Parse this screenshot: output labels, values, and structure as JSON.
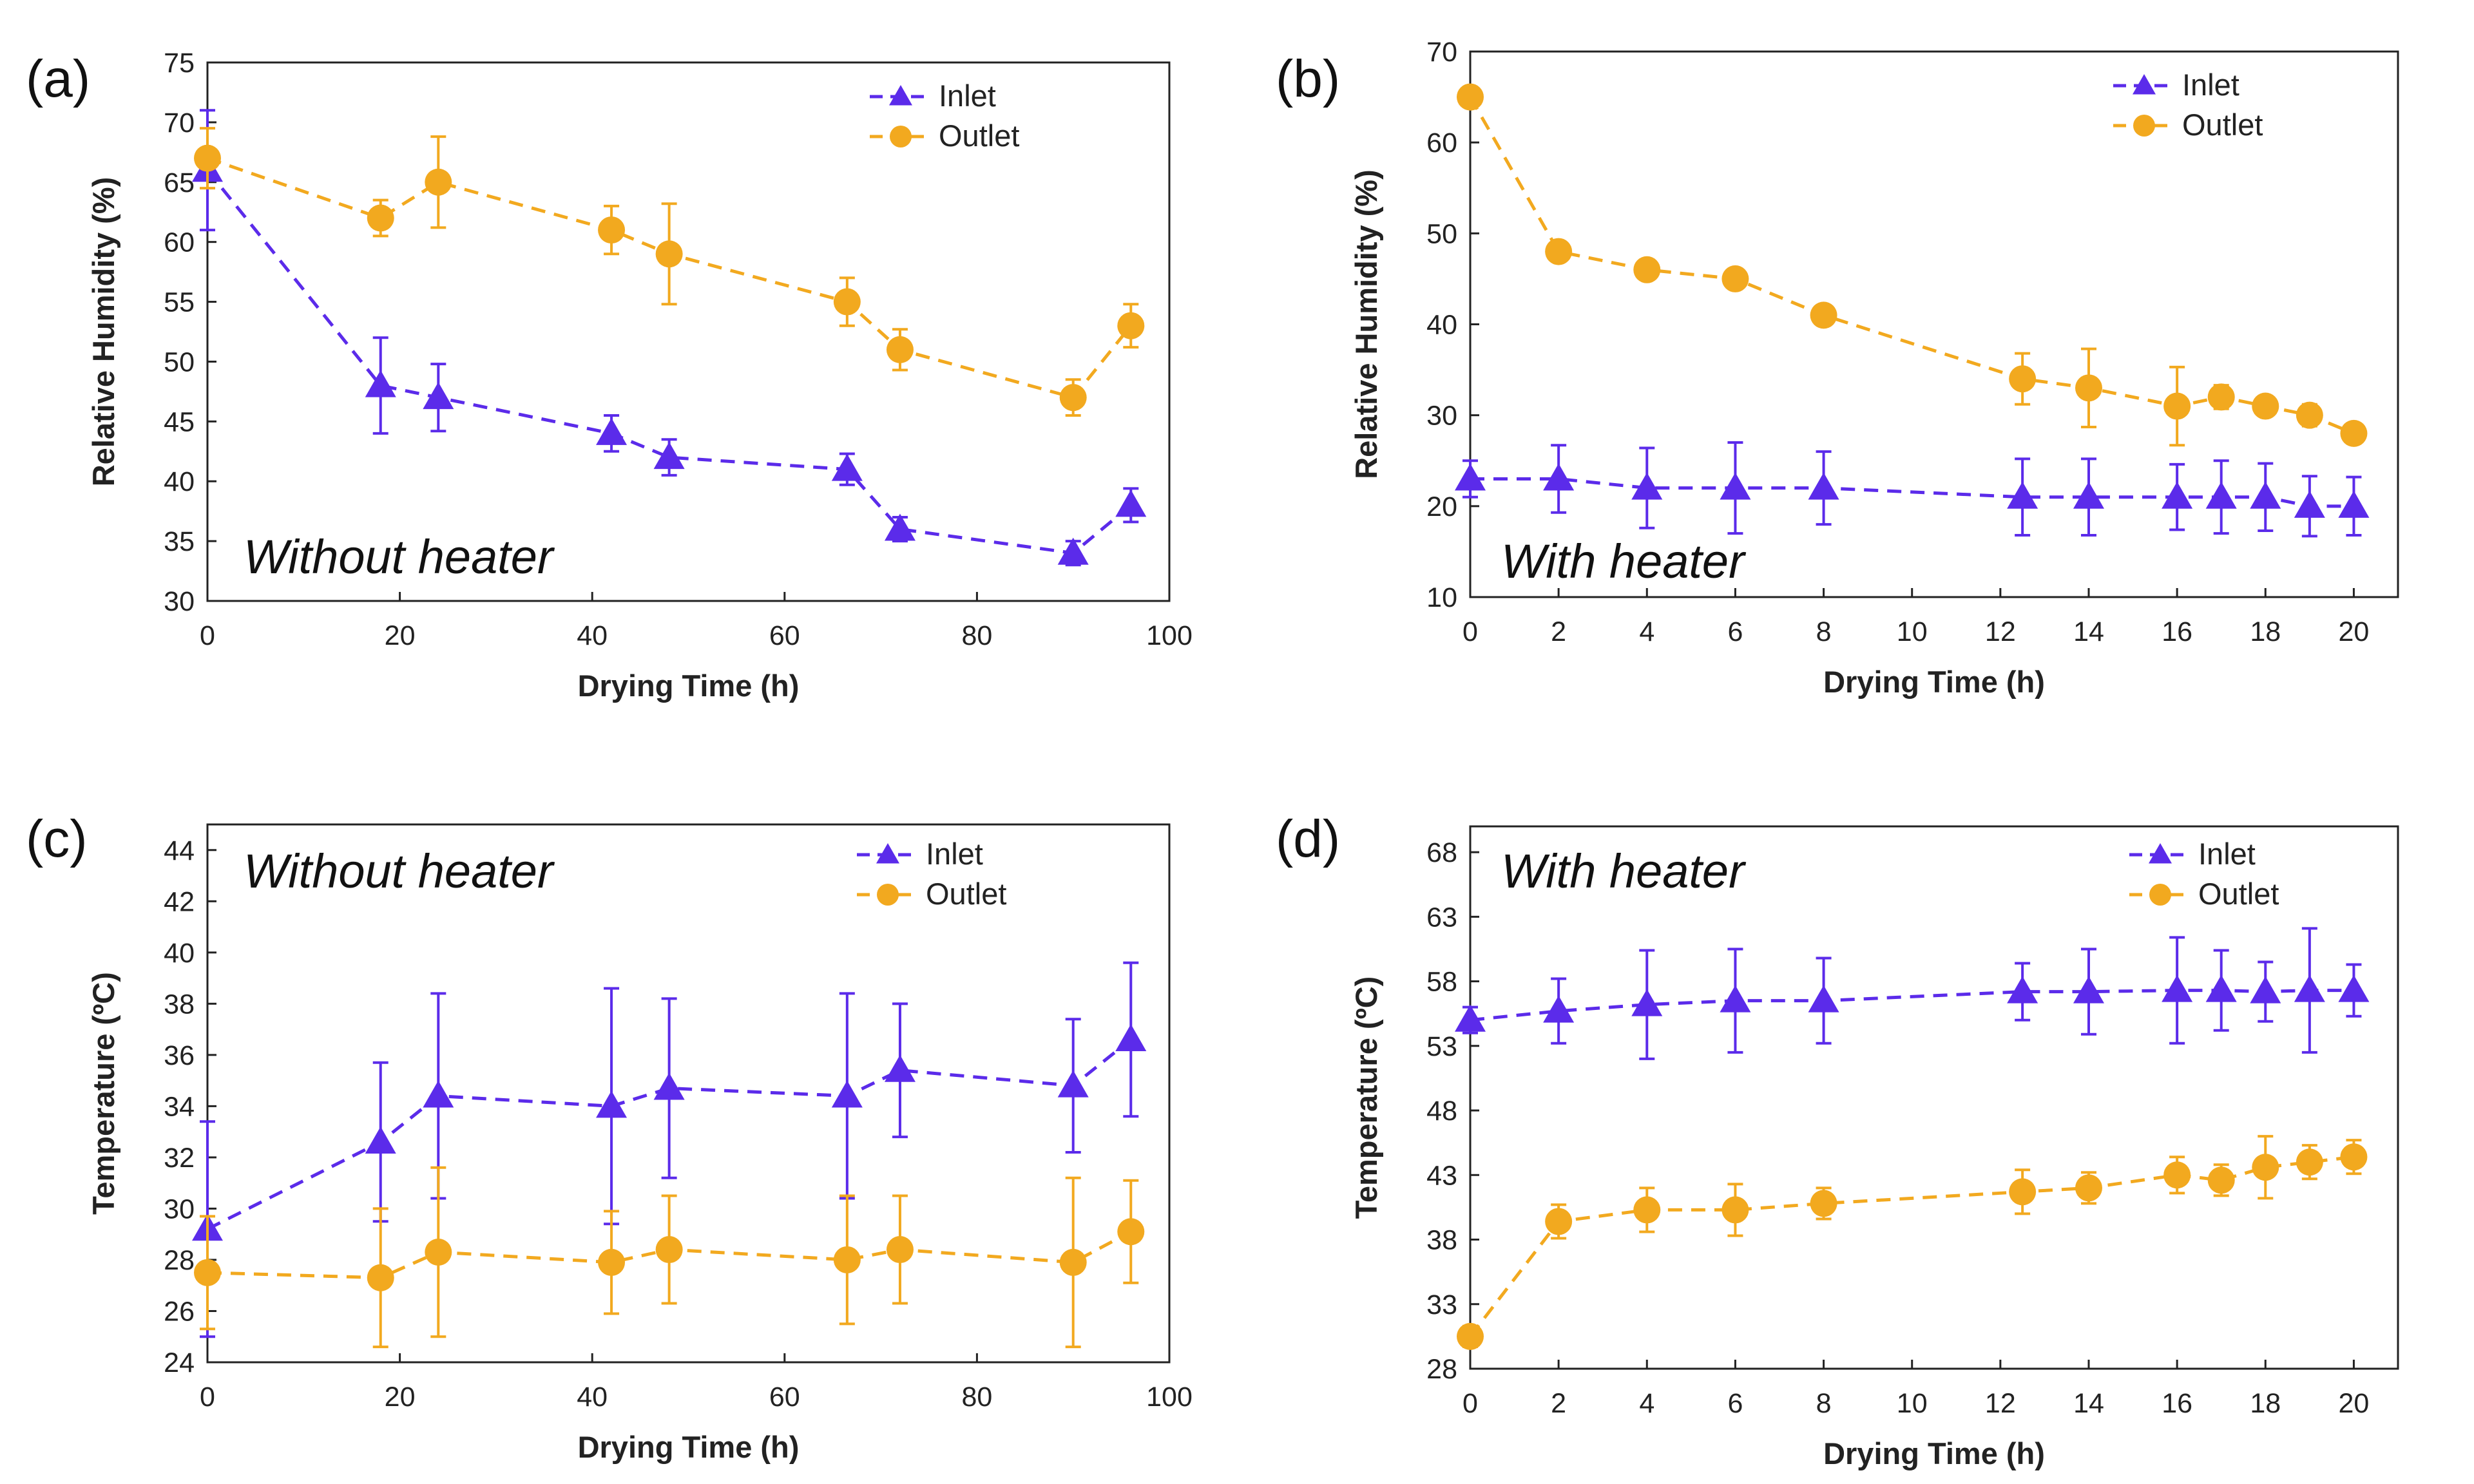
{
  "colors": {
    "inlet": "#5B2BEA",
    "outlet": "#F2A91F",
    "axis": "#222222"
  },
  "chart_data": [
    {
      "type": "line",
      "panel_label": "(a)",
      "annotation": "Without heater",
      "xlabel": "Drying  Time (h)",
      "ylabel": "Relative Humidity (%)",
      "xlim": [
        0,
        100
      ],
      "ylim": [
        30,
        75
      ],
      "xticks": [
        0,
        20,
        40,
        60,
        80,
        100
      ],
      "yticks": [
        30,
        35,
        40,
        45,
        50,
        55,
        60,
        65,
        70,
        75
      ],
      "legend": [
        "Inlet",
        "Outlet"
      ],
      "series": [
        {
          "name": "Inlet",
          "marker": "triangle",
          "x": [
            0,
            18,
            24,
            42,
            48,
            66.5,
            72,
            90,
            96
          ],
          "y": [
            66,
            48,
            47,
            44,
            42,
            41,
            36,
            34,
            38
          ],
          "err": [
            5,
            4,
            2.8,
            1.5,
            1.5,
            1.3,
            1,
            1,
            1.4
          ]
        },
        {
          "name": "Outlet",
          "marker": "circle",
          "x": [
            0,
            18,
            24,
            42,
            48,
            66.5,
            72,
            90,
            96
          ],
          "y": [
            67,
            62,
            65,
            61,
            59,
            55,
            51,
            47,
            53
          ],
          "err": [
            2.5,
            1.5,
            3.8,
            2,
            4.2,
            2,
            1.7,
            1.5,
            1.8
          ]
        }
      ]
    },
    {
      "type": "line",
      "panel_label": "(b)",
      "annotation": "With heater",
      "xlabel": "Drying  Time (h)",
      "ylabel": "Relative Humidity (%)",
      "xlim": [
        0,
        21
      ],
      "ylim": [
        10,
        70
      ],
      "xticks": [
        0,
        2,
        4,
        6,
        8,
        10,
        12,
        14,
        16,
        18,
        20
      ],
      "yticks": [
        10,
        20,
        30,
        40,
        50,
        60,
        70
      ],
      "legend": [
        "Inlet",
        "Outlet"
      ],
      "series": [
        {
          "name": "Inlet",
          "marker": "triangle",
          "x": [
            0,
            2,
            4,
            6,
            8,
            12.5,
            14,
            16,
            17,
            18,
            19,
            20
          ],
          "y": [
            23,
            23,
            22,
            22,
            22,
            21,
            21,
            21,
            21,
            21,
            20,
            20
          ],
          "err": [
            2,
            3.7,
            4.4,
            5,
            4,
            4.2,
            4.2,
            3.6,
            4,
            3.7,
            3.3,
            3.2
          ]
        },
        {
          "name": "Outlet",
          "marker": "circle",
          "x": [
            0,
            2,
            4,
            6,
            8,
            12.5,
            14,
            16,
            17,
            18,
            19,
            20
          ],
          "y": [
            65,
            48,
            46,
            45,
            41,
            34,
            33,
            31,
            32,
            31,
            30,
            28
          ],
          "err": [
            1,
            1,
            1,
            1,
            1,
            2.8,
            4.3,
            4.3,
            1.3,
            1,
            1.2,
            1
          ]
        }
      ]
    },
    {
      "type": "line",
      "panel_label": "(c)",
      "annotation": "Without heater",
      "xlabel": "Drying  Time (h)",
      "ylabel": "Temperature (ºC)",
      "xlim": [
        0,
        100
      ],
      "ylim": [
        24,
        45
      ],
      "xticks": [
        0,
        20,
        40,
        60,
        80,
        100
      ],
      "yticks": [
        24,
        26,
        28,
        30,
        32,
        34,
        36,
        38,
        40,
        42,
        44
      ],
      "legend": [
        "Inlet",
        "Outlet"
      ],
      "series": [
        {
          "name": "Inlet",
          "marker": "triangle",
          "x": [
            0,
            18,
            24,
            42,
            48,
            66.5,
            72,
            90,
            96
          ],
          "y": [
            29.2,
            32.6,
            34.4,
            34,
            34.7,
            34.4,
            35.4,
            34.8,
            36.6
          ],
          "err": [
            4.2,
            3.1,
            4,
            4.6,
            3.5,
            4,
            2.6,
            2.6,
            3
          ]
        },
        {
          "name": "Outlet",
          "marker": "circle",
          "x": [
            0,
            18,
            24,
            42,
            48,
            66.5,
            72,
            90,
            96
          ],
          "y": [
            27.5,
            27.3,
            28.3,
            27.9,
            28.4,
            28,
            28.4,
            27.9,
            29.1
          ],
          "err": [
            2.2,
            2.7,
            3.3,
            2,
            2.1,
            2.5,
            2.1,
            3.3,
            2
          ]
        }
      ]
    },
    {
      "type": "line",
      "panel_label": "(d)",
      "annotation": "With heater",
      "xlabel": "Drying  Time (h)",
      "ylabel": "Temperature (ºC)",
      "xlim": [
        0,
        21
      ],
      "ylim": [
        28,
        70
      ],
      "xticks": [
        0,
        2,
        4,
        6,
        8,
        10,
        12,
        14,
        16,
        18,
        20
      ],
      "yticks": [
        28,
        33,
        38,
        43,
        48,
        53,
        58,
        63,
        68
      ],
      "legend": [
        "Inlet",
        "Outlet"
      ],
      "series": [
        {
          "name": "Inlet",
          "marker": "triangle",
          "x": [
            0,
            2,
            4,
            6,
            8,
            12.5,
            14,
            16,
            17,
            18,
            19,
            20
          ],
          "y": [
            55,
            55.7,
            56.2,
            56.5,
            56.5,
            57.2,
            57.2,
            57.3,
            57.3,
            57.2,
            57.3,
            57.3
          ],
          "err": [
            1,
            2.5,
            4.2,
            4,
            3.3,
            2.2,
            3.3,
            4.1,
            3.1,
            2.3,
            4.8,
            2
          ]
        },
        {
          "name": "Outlet",
          "marker": "circle",
          "x": [
            0,
            2,
            4,
            6,
            8,
            12.5,
            14,
            16,
            17,
            18,
            19,
            20
          ],
          "y": [
            30.5,
            39.4,
            40.3,
            40.3,
            40.8,
            41.7,
            42,
            43,
            42.6,
            43.6,
            44,
            44.4
          ],
          "err": [
            0.8,
            1.3,
            1.7,
            2,
            1.2,
            1.7,
            1.2,
            1.4,
            1.2,
            2.4,
            1.3,
            1.3
          ]
        }
      ]
    }
  ]
}
